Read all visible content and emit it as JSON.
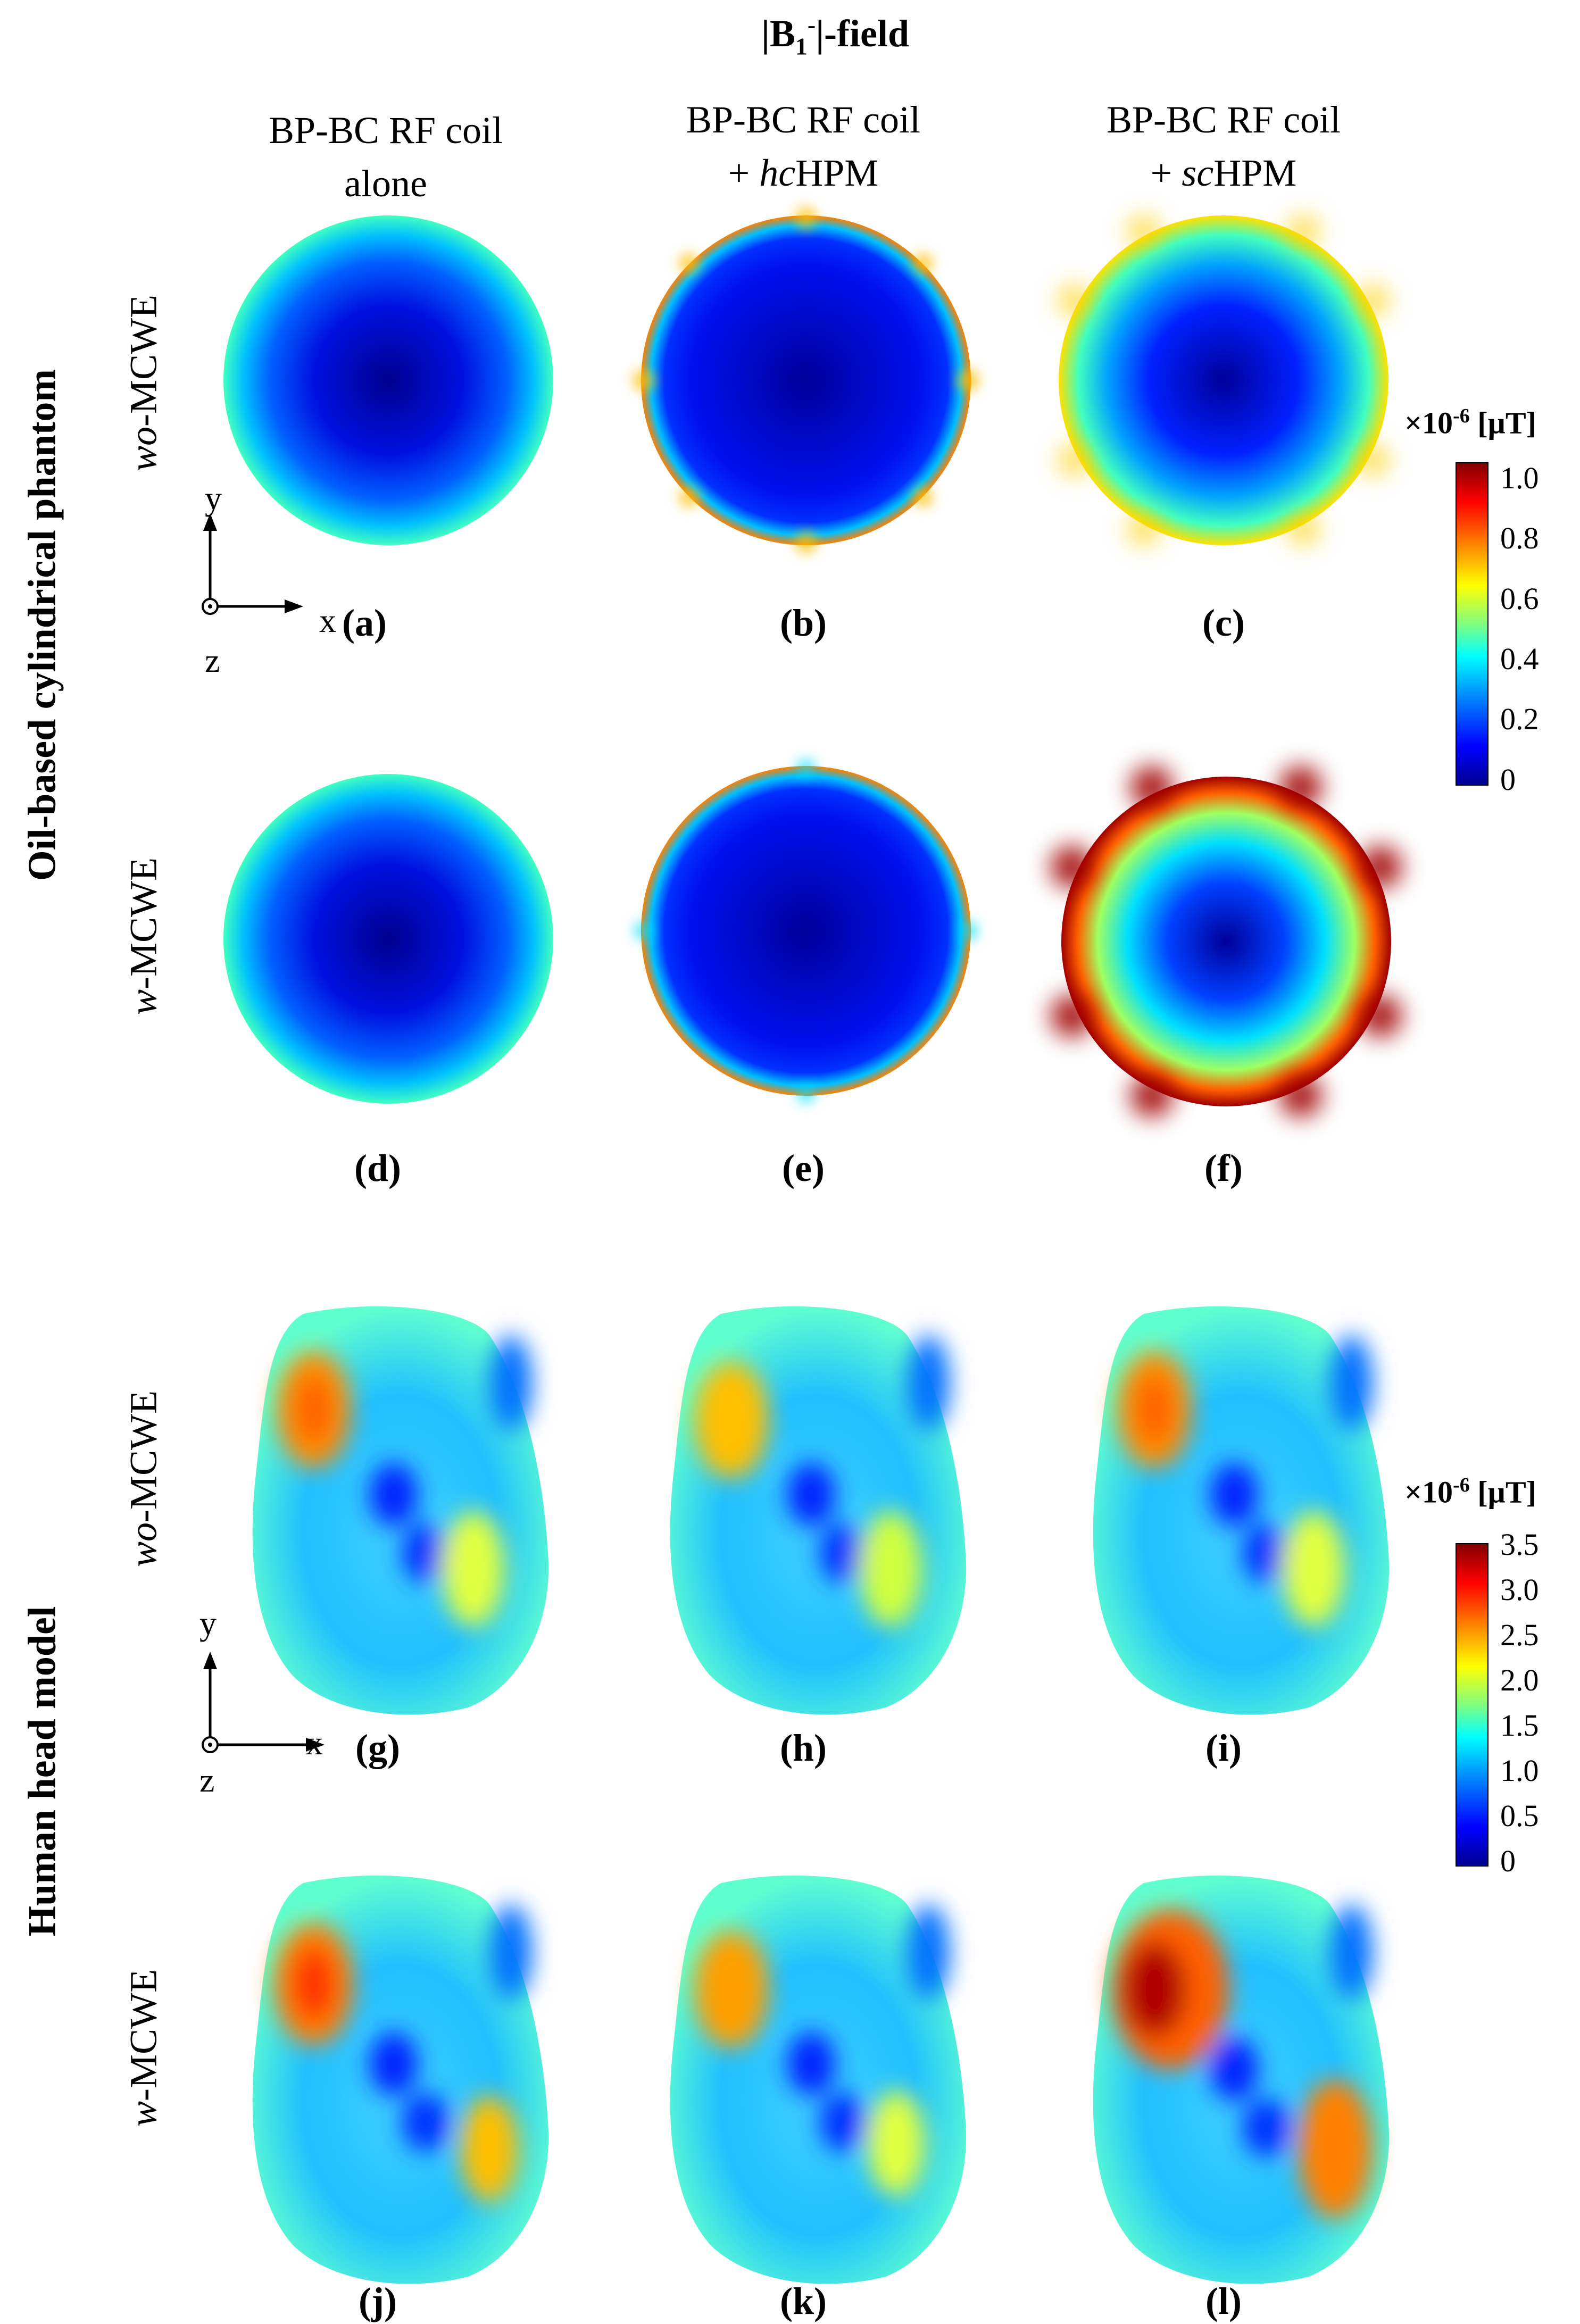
{
  "figure_title": "|B1-|-field",
  "column_headers": [
    {
      "line1": "BP-BC RF coil",
      "line2": "alone"
    },
    {
      "line1": "BP-BC RF coil",
      "line2": "+ hcHPM",
      "prefix": "+ ",
      "italic": "hc",
      "suffix": "HPM"
    },
    {
      "line1": "BP-BC RF coil",
      "line2": "+ scHPM",
      "prefix": "+ ",
      "italic": "sc",
      "suffix": "HPM"
    }
  ],
  "sections": [
    {
      "label": "Oil-based cylindrical phantom"
    },
    {
      "label": "Human head model"
    }
  ],
  "row_labels": [
    {
      "italic": "wo",
      "rest": "-MCWE"
    },
    {
      "italic": "w",
      "rest": "-MCWE"
    },
    {
      "italic": "wo",
      "rest": "-MCWE"
    },
    {
      "italic": "w",
      "rest": "-MCWE"
    }
  ],
  "panel_labels": [
    "(a)",
    "(b)",
    "(c)",
    "(d)",
    "(e)",
    "(f)",
    "(g)",
    "(h)",
    "(i)",
    "(j)",
    "(k)",
    "(l)"
  ],
  "axes": {
    "x": "x",
    "y": "y",
    "z": "z"
  },
  "colorbars": [
    {
      "title": "×10-6 [µT]",
      "exp": "-6",
      "unit": "[µT]",
      "min": 0,
      "max": 1.0,
      "ticks": [
        "1.0",
        "0.8",
        "0.6",
        "0.4",
        "0.2",
        "0"
      ]
    },
    {
      "title": "×10-6 [µT]",
      "exp": "-6",
      "unit": "[µT]",
      "min": 0,
      "max": 3.5,
      "ticks": [
        "3.5",
        "3.0",
        "2.5",
        "2.0",
        "1.5",
        "1.0",
        "0.5",
        "0"
      ]
    }
  ],
  "colormap": "jet",
  "colors": {
    "jet": [
      "#00008f",
      "#0000ff",
      "#00a0ff",
      "#00ffff",
      "#80ff80",
      "#ffff00",
      "#ff8000",
      "#ff0000",
      "#800000"
    ]
  }
}
